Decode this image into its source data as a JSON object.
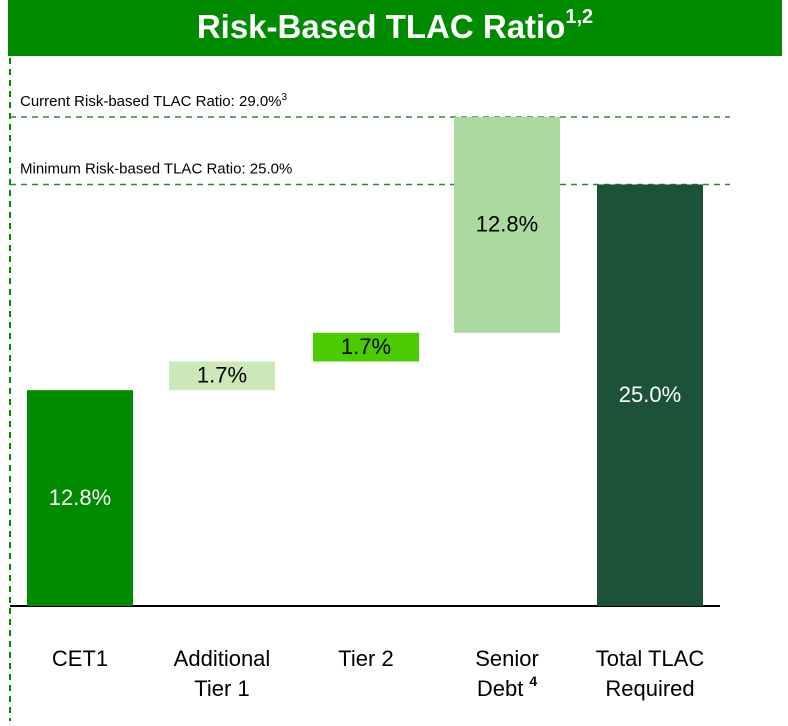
{
  "chart_data": {
    "type": "waterfall",
    "title": "Risk-Based TLAC Ratio",
    "title_superscript": "1,2",
    "categories": [
      [
        "CET1"
      ],
      [
        "Additional",
        "Tier 1"
      ],
      [
        "Tier 2"
      ],
      [
        "Senior",
        "Debt"
      ],
      [
        "Total TLAC",
        "Required"
      ]
    ],
    "category_superscripts": [
      null,
      null,
      null,
      "4",
      null
    ],
    "values": [
      12.8,
      1.7,
      1.7,
      12.8,
      25.0
    ],
    "value_labels": [
      "12.8%",
      "1.7%",
      "1.7%",
      "12.8%",
      "25.0%"
    ],
    "totals": [
      false,
      false,
      false,
      false,
      true
    ],
    "colors": [
      "#008a00",
      "#cde8b8",
      "#4ccc00",
      "#acd9a0",
      "#1d5238"
    ],
    "label_colors": [
      "#ffffff",
      "#000000",
      "#000000",
      "#000000",
      "#ffffff"
    ],
    "reference_lines": [
      {
        "label": "Current Risk-based TLAC Ratio: 29.0%",
        "superscript": "3",
        "value": 29.0
      },
      {
        "label": "Minimum Risk-based TLAC Ratio: 25.0%",
        "superscript": null,
        "value": 25.0
      }
    ],
    "ylim": [
      0,
      29.0
    ]
  }
}
